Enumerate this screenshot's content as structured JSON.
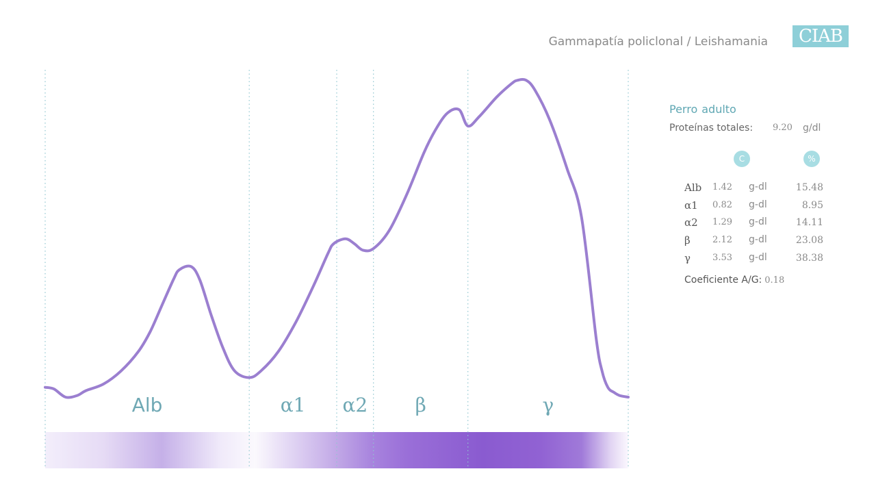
{
  "header": {
    "title": "Gammapatía policlonal / Leishamania",
    "logo_text": "CIAB"
  },
  "patient": {
    "species": "Perro",
    "age": "adulto",
    "total_protein_label": "Proteínas totales:",
    "total_protein_value": "9.20",
    "total_protein_unit": "g/dl"
  },
  "table": {
    "col_conc_header": "C",
    "col_pct_header": "%",
    "rows": [
      {
        "name": "Alb",
        "conc": "1.42",
        "unit": "g-dl",
        "pct": "15.48"
      },
      {
        "name": "α1",
        "conc": "0.82",
        "unit": "g-dl",
        "pct": "8.95"
      },
      {
        "name": "α2",
        "conc": "1.29",
        "unit": "g-dl",
        "pct": "14.11"
      },
      {
        "name": "β",
        "conc": "2.12",
        "unit": "g-dl",
        "pct": "23.08"
      },
      {
        "name": "γ",
        "conc": "3.53",
        "unit": "g-dl",
        "pct": "38.38"
      }
    ],
    "ag_label": "Coeficiente A/G:",
    "ag_value": "0.18"
  },
  "chart_data": {
    "type": "line",
    "title": "Gammapatía policlonal / Leishamania",
    "xlabel": "",
    "ylabel": "",
    "grid": false,
    "bands": [
      {
        "name": "Alb",
        "start": 0,
        "end": 35
      },
      {
        "name": "α1",
        "start": 35,
        "end": 50
      },
      {
        "name": "α2",
        "start": 50,
        "end": 56.3
      },
      {
        "name": "β",
        "start": 56.3,
        "end": 72.5
      },
      {
        "name": "γ",
        "start": 72.5,
        "end": 100
      }
    ],
    "series": [
      {
        "color": "#9b7fd0",
        "points": [
          [
            0,
            3
          ],
          [
            1.5,
            2.5
          ],
          [
            3.5,
            0
          ],
          [
            5.5,
            0.5
          ],
          [
            7,
            2
          ],
          [
            10,
            4
          ],
          [
            13,
            8
          ],
          [
            16,
            14
          ],
          [
            18,
            20
          ],
          [
            20,
            28
          ],
          [
            22,
            36
          ],
          [
            23,
            39
          ],
          [
            25,
            40
          ],
          [
            26.5,
            36
          ],
          [
            28.5,
            25
          ],
          [
            30.5,
            15
          ],
          [
            32.5,
            8
          ],
          [
            35,
            6
          ],
          [
            37,
            8
          ],
          [
            40,
            14
          ],
          [
            43,
            23
          ],
          [
            46,
            34
          ],
          [
            48.5,
            44
          ],
          [
            49.5,
            47
          ],
          [
            51.5,
            48.5
          ],
          [
            53,
            47
          ],
          [
            54.5,
            45
          ],
          [
            56.3,
            45.5
          ],
          [
            59,
            51
          ],
          [
            62,
            62
          ],
          [
            65,
            75
          ],
          [
            67,
            82
          ],
          [
            69,
            87
          ],
          [
            71,
            88
          ],
          [
            72.5,
            83
          ],
          [
            74.5,
            86
          ],
          [
            77.5,
            92
          ],
          [
            80,
            96
          ],
          [
            81,
            97
          ],
          [
            82.5,
            97
          ],
          [
            84,
            94
          ],
          [
            86.5,
            85
          ],
          [
            89.5,
            70
          ],
          [
            92,
            55
          ],
          [
            94.5,
            18
          ],
          [
            95.5,
            8
          ],
          [
            96.5,
            3
          ],
          [
            97.5,
            1.5
          ],
          [
            98.5,
            0.5
          ],
          [
            100,
            0
          ]
        ]
      }
    ],
    "xlim": [
      0,
      100
    ],
    "ylim": [
      0,
      100
    ]
  }
}
